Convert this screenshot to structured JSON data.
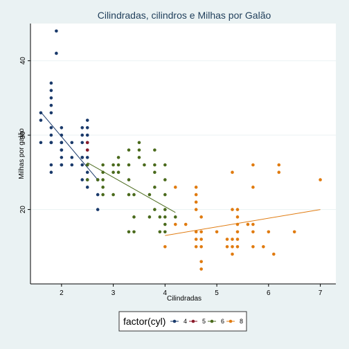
{
  "chart_data": {
    "type": "scatter",
    "title": "Cilindradas, cilindros e Milhas por Galão",
    "xlabel": "Cilindradas",
    "ylabel": "Milhas por galão",
    "xlim": [
      1.4,
      7.3
    ],
    "ylim": [
      10,
      45
    ],
    "xticks": [
      2,
      3,
      4,
      5,
      6,
      7
    ],
    "yticks": [
      20,
      30,
      40
    ],
    "grid": "horizontal",
    "legend": {
      "title": "factor(cyl)",
      "placement": "bottom"
    },
    "series": [
      {
        "name": "4",
        "color": "#1a3a6b",
        "points": [
          [
            1.6,
            33
          ],
          [
            1.6,
            32
          ],
          [
            1.6,
            29
          ],
          [
            1.8,
            29
          ],
          [
            1.8,
            29
          ],
          [
            1.8,
            26
          ],
          [
            1.8,
            25
          ],
          [
            1.8,
            35
          ],
          [
            1.8,
            36
          ],
          [
            1.8,
            37
          ],
          [
            1.8,
            34
          ],
          [
            1.8,
            33
          ],
          [
            1.8,
            31
          ],
          [
            1.8,
            30
          ],
          [
            1.8,
            29
          ],
          [
            1.9,
            44
          ],
          [
            1.9,
            41
          ],
          [
            2.0,
            26
          ],
          [
            2.0,
            29
          ],
          [
            2.0,
            28
          ],
          [
            2.0,
            31
          ],
          [
            2.0,
            30
          ],
          [
            2.0,
            27
          ],
          [
            2.0,
            26
          ],
          [
            2.0,
            29
          ],
          [
            2.0,
            28
          ],
          [
            2.0,
            29
          ],
          [
            2.2,
            27
          ],
          [
            2.2,
            26
          ],
          [
            2.2,
            29
          ],
          [
            2.4,
            27
          ],
          [
            2.4,
            29
          ],
          [
            2.4,
            30
          ],
          [
            2.4,
            31
          ],
          [
            2.4,
            24
          ],
          [
            2.4,
            26
          ],
          [
            2.4,
            27
          ],
          [
            2.5,
            26
          ],
          [
            2.5,
            27
          ],
          [
            2.5,
            28
          ],
          [
            2.5,
            25
          ],
          [
            2.5,
            24
          ],
          [
            2.5,
            23
          ],
          [
            2.5,
            32
          ],
          [
            2.5,
            31
          ],
          [
            2.5,
            30
          ],
          [
            2.5,
            29
          ],
          [
            2.7,
            24
          ],
          [
            2.7,
            22
          ],
          [
            2.7,
            20
          ]
        ],
        "trend": [
          [
            1.6,
            33.1
          ],
          [
            2.7,
            24.0
          ]
        ]
      },
      {
        "name": "5",
        "color": "#8b1a2a",
        "points": [
          [
            2.5,
            28
          ],
          [
            2.5,
            29
          ]
        ],
        "trend": [
          [
            2.5,
            28.5
          ],
          [
            2.5,
            28.5
          ]
        ]
      },
      {
        "name": "6",
        "color": "#4a6a1c",
        "points": [
          [
            2.5,
            26
          ],
          [
            2.5,
            24
          ],
          [
            2.7,
            24
          ],
          [
            2.8,
            26
          ],
          [
            2.8,
            25
          ],
          [
            2.8,
            24
          ],
          [
            2.8,
            23
          ],
          [
            2.8,
            22
          ],
          [
            3.0,
            26
          ],
          [
            3.0,
            25
          ],
          [
            3.0,
            22
          ],
          [
            3.1,
            27
          ],
          [
            3.1,
            26
          ],
          [
            3.1,
            25
          ],
          [
            3.3,
            24
          ],
          [
            3.3,
            26
          ],
          [
            3.3,
            28
          ],
          [
            3.3,
            22
          ],
          [
            3.3,
            17
          ],
          [
            3.4,
            22
          ],
          [
            3.4,
            19
          ],
          [
            3.4,
            17
          ],
          [
            3.5,
            29
          ],
          [
            3.5,
            28
          ],
          [
            3.5,
            27
          ],
          [
            3.6,
            26
          ],
          [
            3.7,
            22
          ],
          [
            3.7,
            19
          ],
          [
            3.8,
            28
          ],
          [
            3.8,
            26
          ],
          [
            3.8,
            25
          ],
          [
            3.8,
            23
          ],
          [
            3.8,
            20
          ],
          [
            3.9,
            19
          ],
          [
            3.9,
            17
          ],
          [
            4.0,
            26
          ],
          [
            4.0,
            24
          ],
          [
            4.0,
            22
          ],
          [
            4.0,
            20
          ],
          [
            4.0,
            19
          ],
          [
            4.0,
            18
          ],
          [
            4.0,
            17
          ],
          [
            4.2,
            19
          ]
        ],
        "trend": [
          [
            2.5,
            26.3
          ],
          [
            4.2,
            19.6
          ]
        ]
      },
      {
        "name": "8",
        "color": "#e07b10",
        "points": [
          [
            4.0,
            15
          ],
          [
            4.2,
            23
          ],
          [
            4.2,
            18
          ],
          [
            4.4,
            18
          ],
          [
            4.6,
            23
          ],
          [
            4.6,
            22
          ],
          [
            4.6,
            21
          ],
          [
            4.6,
            20
          ],
          [
            4.6,
            17
          ],
          [
            4.6,
            16
          ],
          [
            4.6,
            15
          ],
          [
            4.7,
            19
          ],
          [
            4.7,
            17
          ],
          [
            4.7,
            16
          ],
          [
            4.7,
            15
          ],
          [
            4.7,
            13
          ],
          [
            4.7,
            12
          ],
          [
            5.0,
            17
          ],
          [
            5.2,
            16
          ],
          [
            5.2,
            15
          ],
          [
            5.3,
            25
          ],
          [
            5.3,
            20
          ],
          [
            5.3,
            16
          ],
          [
            5.3,
            15
          ],
          [
            5.3,
            14
          ],
          [
            5.4,
            20
          ],
          [
            5.4,
            19
          ],
          [
            5.4,
            18
          ],
          [
            5.4,
            17
          ],
          [
            5.4,
            16
          ],
          [
            5.4,
            15
          ],
          [
            5.6,
            18
          ],
          [
            5.7,
            26
          ],
          [
            5.7,
            23
          ],
          [
            5.7,
            18
          ],
          [
            5.7,
            17
          ],
          [
            5.7,
            15
          ],
          [
            5.9,
            15
          ],
          [
            6.0,
            17
          ],
          [
            6.1,
            14
          ],
          [
            6.2,
            26
          ],
          [
            6.2,
            25
          ],
          [
            6.5,
            17
          ],
          [
            7.0,
            24
          ]
        ],
        "trend": [
          [
            4.0,
            16.5
          ],
          [
            7.0,
            20.0
          ]
        ]
      }
    ]
  }
}
